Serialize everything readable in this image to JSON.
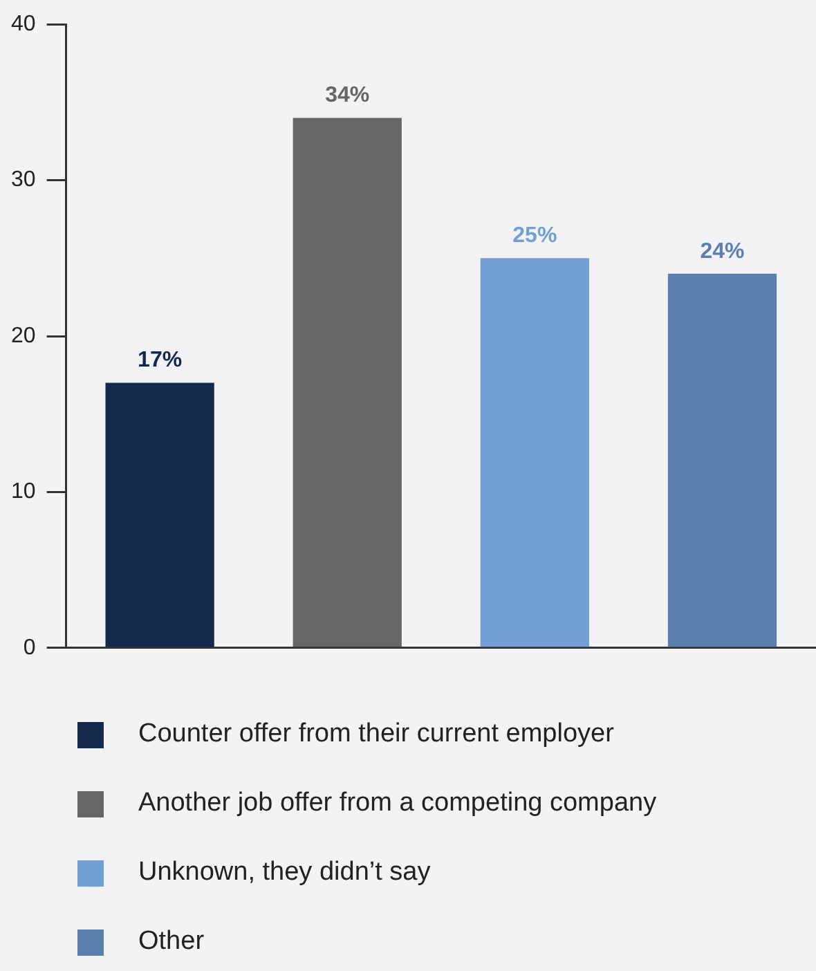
{
  "chart_data": {
    "type": "bar",
    "categories": [
      null,
      null,
      null,
      null
    ],
    "series": [
      {
        "name": "Counter offer from their current employer",
        "color": "#13294b",
        "values": [
          17,
          null,
          null,
          null
        ],
        "value_labels": [
          "17%",
          null,
          null,
          null
        ]
      },
      {
        "name": "Another job offer from a competing company",
        "color": "#666666",
        "values": [
          null,
          34,
          null,
          null
        ],
        "value_labels": [
          null,
          "34%",
          null,
          null
        ]
      },
      {
        "name": "Unknown, they didn’t say",
        "color": "#729fd4",
        "values": [
          null,
          null,
          25,
          null
        ],
        "value_labels": [
          null,
          null,
          "25%",
          null
        ]
      },
      {
        "name": "Other",
        "color": "#5b80ad",
        "values": [
          null,
          null,
          null,
          24
        ],
        "value_labels": [
          null,
          null,
          null,
          "24%"
        ]
      }
    ],
    "ylim": [
      0,
      40
    ],
    "yticks": [
      0,
      10,
      20,
      30,
      40
    ],
    "grid": false,
    "legend": "bottom",
    "tick_labels": "y"
  }
}
